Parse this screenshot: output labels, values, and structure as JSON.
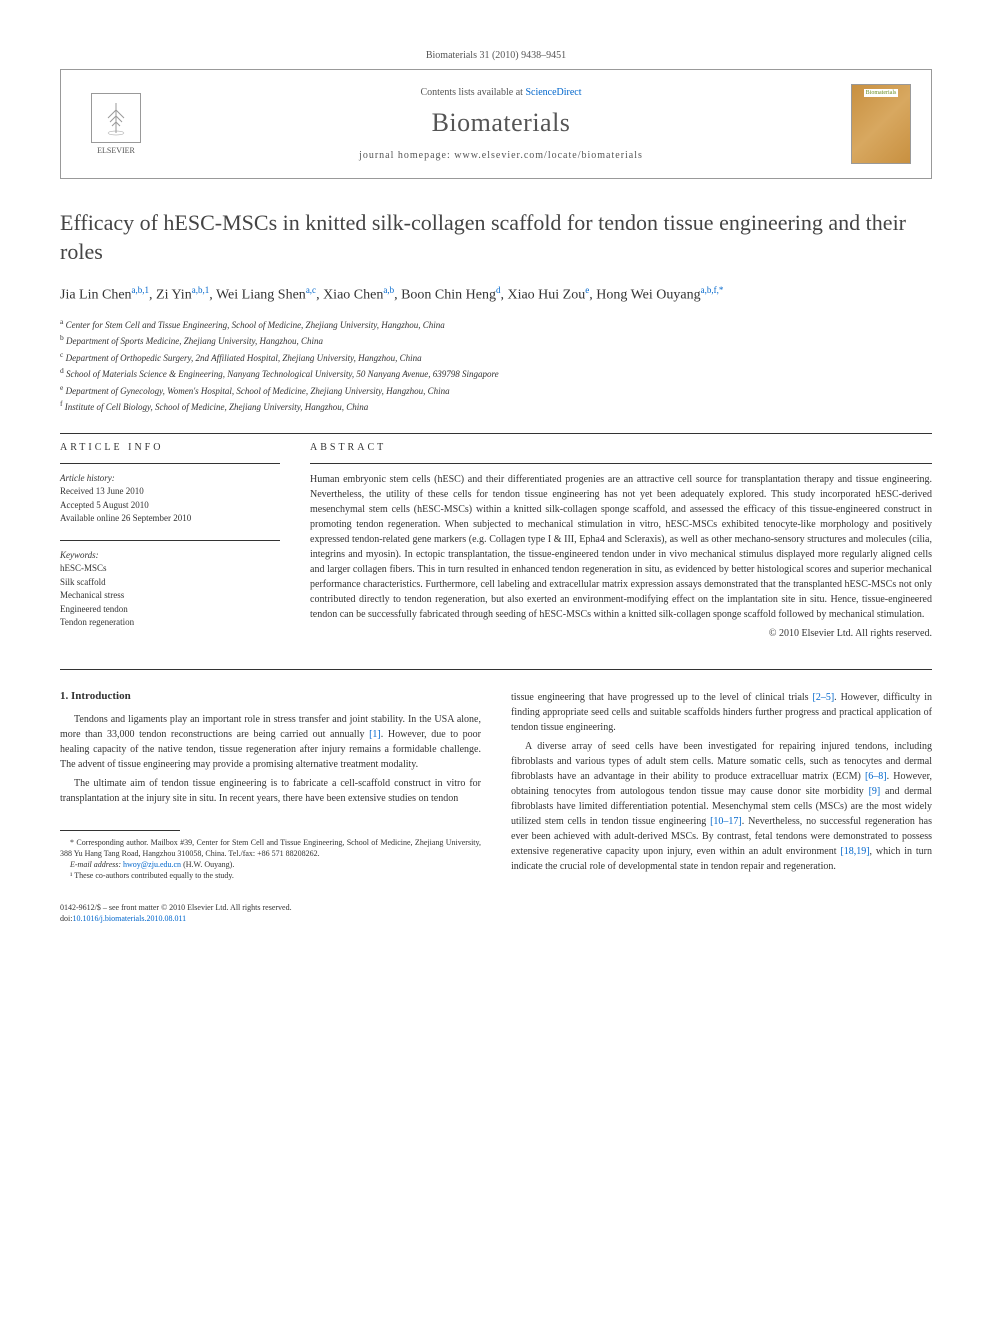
{
  "citation": "Biomaterials 31 (2010) 9438–9451",
  "header": {
    "publisher": "ELSEVIER",
    "contents_prefix": "Contents lists available at ",
    "contents_link": "ScienceDirect",
    "journal_name": "Biomaterials",
    "homepage_prefix": "journal homepage: ",
    "homepage": "www.elsevier.com/locate/biomaterials",
    "cover_label": "Biomaterials"
  },
  "title": "Efficacy of hESC-MSCs in knitted silk-collagen scaffold for tendon tissue engineering and their roles",
  "authors_html": "Jia Lin Chen<sup>a,b,1</sup>, Zi Yin<sup>a,b,1</sup>, Wei Liang Shen<sup>a,c</sup>, Xiao Chen<sup>a,b</sup>, Boon Chin Heng<sup>d</sup>, Xiao Hui Zou<sup>e</sup>, Hong Wei Ouyang<sup>a,b,f,*</sup>",
  "affiliations": [
    {
      "key": "a",
      "text": "Center for Stem Cell and Tissue Engineering, School of Medicine, Zhejiang University, Hangzhou, China"
    },
    {
      "key": "b",
      "text": "Department of Sports Medicine, Zhejiang University, Hangzhou, China"
    },
    {
      "key": "c",
      "text": "Department of Orthopedic Surgery, 2nd Affiliated Hospital, Zhejiang University, Hangzhou, China"
    },
    {
      "key": "d",
      "text": "School of Materials Science & Engineering, Nanyang Technological University, 50 Nanyang Avenue, 639798 Singapore"
    },
    {
      "key": "e",
      "text": "Department of Gynecology, Women's Hospital, School of Medicine, Zhejiang University, Hangzhou, China"
    },
    {
      "key": "f",
      "text": "Institute of Cell Biology, School of Medicine, Zhejiang University, Hangzhou, China"
    }
  ],
  "article_info": {
    "heading": "ARTICLE INFO",
    "history_label": "Article history:",
    "history": [
      "Received 13 June 2010",
      "Accepted 5 August 2010",
      "Available online 26 September 2010"
    ],
    "keywords_label": "Keywords:",
    "keywords": [
      "hESC-MSCs",
      "Silk scaffold",
      "Mechanical stress",
      "Engineered tendon",
      "Tendon regeneration"
    ]
  },
  "abstract": {
    "heading": "ABSTRACT",
    "text": "Human embryonic stem cells (hESC) and their differentiated progenies are an attractive cell source for transplantation therapy and tissue engineering. Nevertheless, the utility of these cells for tendon tissue engineering has not yet been adequately explored. This study incorporated hESC-derived mesenchymal stem cells (hESC-MSCs) within a knitted silk-collagen sponge scaffold, and assessed the efficacy of this tissue-engineered construct in promoting tendon regeneration. When subjected to mechanical stimulation in vitro, hESC-MSCs exhibited tenocyte-like morphology and positively expressed tendon-related gene markers (e.g. Collagen type I & III, Epha4 and Scleraxis), as well as other mechano-sensory structures and molecules (cilia, integrins and myosin). In ectopic transplantation, the tissue-engineered tendon under in vivo mechanical stimulus displayed more regularly aligned cells and larger collagen fibers. This in turn resulted in enhanced tendon regeneration in situ, as evidenced by better histological scores and superior mechanical performance characteristics. Furthermore, cell labeling and extracellular matrix expression assays demonstrated that the transplanted hESC-MSCs not only contributed directly to tendon regeneration, but also exerted an environment-modifying effect on the implantation site in situ. Hence, tissue-engineered tendon can be successfully fabricated through seeding of hESC-MSCs within a knitted silk-collagen sponge scaffold followed by mechanical stimulation.",
    "copyright": "© 2010 Elsevier Ltd. All rights reserved."
  },
  "body": {
    "intro_heading": "1. Introduction",
    "col1_p1": "Tendons and ligaments play an important role in stress transfer and joint stability. In the USA alone, more than 33,000 tendon reconstructions are being carried out annually [1]. However, due to poor healing capacity of the native tendon, tissue regeneration after injury remains a formidable challenge. The advent of tissue engineering may provide a promising alternative treatment modality.",
    "col1_p2": "The ultimate aim of tendon tissue engineering is to fabricate a cell-scaffold construct in vitro for transplantation at the injury site in situ. In recent years, there have been extensive studies on tendon",
    "col2_p1": "tissue engineering that have progressed up to the level of clinical trials [2–5]. However, difficulty in finding appropriate seed cells and suitable scaffolds hinders further progress and practical application of tendon tissue engineering.",
    "col2_p2": "A diverse array of seed cells have been investigated for repairing injured tendons, including fibroblasts and various types of adult stem cells. Mature somatic cells, such as tenocytes and dermal fibroblasts have an advantage in their ability to produce extracelluar matrix (ECM) [6–8]. However, obtaining tenocytes from autologous tendon tissue may cause donor site morbidity [9] and dermal fibroblasts have limited differentiation potential. Mesenchymal stem cells (MSCs) are the most widely utilized stem cells in tendon tissue engineering [10–17]. Nevertheless, no successful regeneration has ever been achieved with adult-derived MSCs. By contrast, fetal tendons were demonstrated to possess extensive regenerative capacity upon injury, even within an adult environment [18,19], which in turn indicate the crucial role of developmental state in tendon repair and regeneration."
  },
  "footnotes": {
    "corresponding": "* Corresponding author. Mailbox #39, Center for Stem Cell and Tissue Engineering, School of Medicine, Zhejiang University, 388 Yu Hang Tang Road, Hangzhou 310058, China. Tel./fax: +86 571 88208262.",
    "email_label": "E-mail address: ",
    "email": "hwoy@zju.edu.cn",
    "email_suffix": " (H.W. Ouyang).",
    "equal": "¹ These co-authors contributed equally to the study."
  },
  "footmatter": {
    "line1": "0142-9612/$ – see front matter © 2010 Elsevier Ltd. All rights reserved.",
    "doi_prefix": "doi:",
    "doi": "10.1016/j.biomaterials.2010.08.011"
  },
  "colors": {
    "link": "#0066cc",
    "text": "#333333",
    "muted": "#555555",
    "border": "#999999"
  }
}
